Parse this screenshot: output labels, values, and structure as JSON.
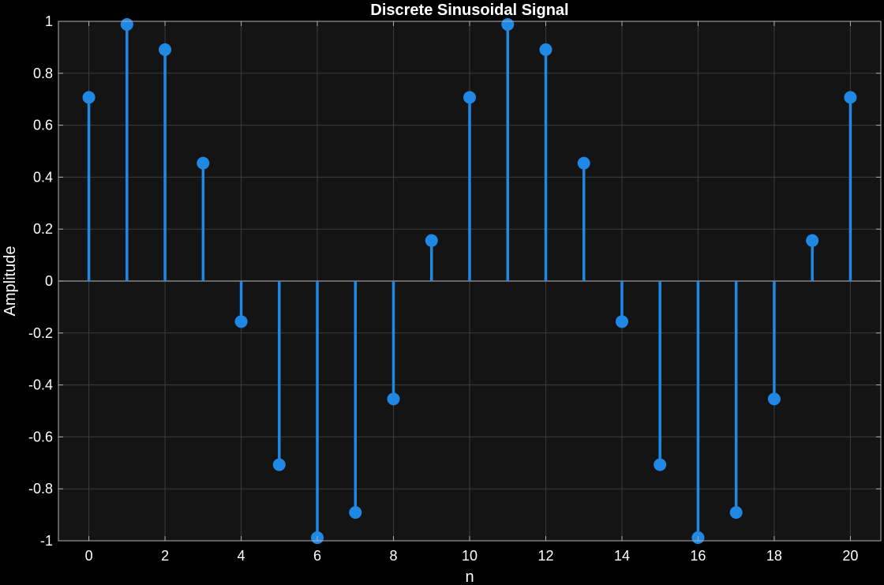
{
  "chart_data": {
    "type": "stem",
    "title": "Discrete Sinusoidal Signal",
    "xlabel": "n",
    "ylabel": "Amplitude",
    "xlim": [
      -0.8,
      20.8
    ],
    "ylim": [
      -1,
      1
    ],
    "xticks": [
      0,
      2,
      4,
      6,
      8,
      10,
      12,
      14,
      16,
      18,
      20
    ],
    "yticks": [
      -1,
      -0.8,
      -0.6,
      -0.4,
      -0.2,
      0,
      0.2,
      0.4,
      0.6,
      0.8,
      1
    ],
    "grid": true,
    "x": [
      0,
      1,
      2,
      3,
      4,
      5,
      6,
      7,
      8,
      9,
      10,
      11,
      12,
      13,
      14,
      15,
      16,
      17,
      18,
      19,
      20
    ],
    "y": [
      0.707,
      0.988,
      0.891,
      0.454,
      -0.156,
      -0.707,
      -0.988,
      -0.891,
      -0.454,
      0.156,
      0.707,
      0.988,
      0.891,
      0.454,
      -0.156,
      -0.707,
      -0.988,
      -0.891,
      -0.454,
      0.156,
      0.707
    ],
    "colors": {
      "background": "#000000",
      "plot_area": "#141414",
      "grid": "#3c3c3c",
      "axis": "#b0b0b0",
      "stem": "#1f88e5"
    }
  }
}
